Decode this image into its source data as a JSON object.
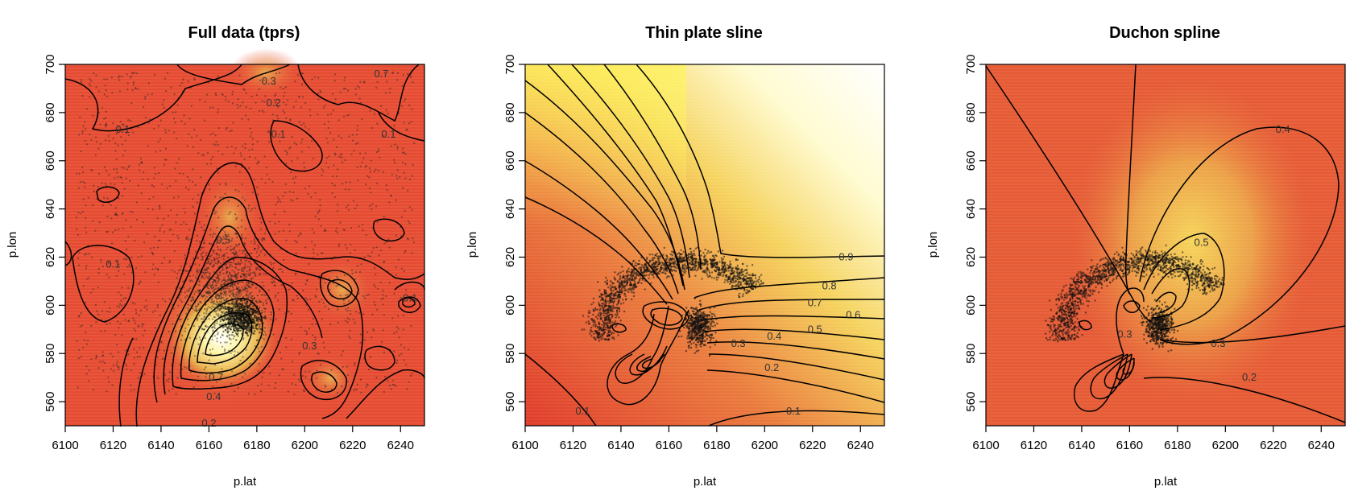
{
  "chart_data": [
    {
      "type": "heatmap",
      "title": "Full data (tprs)",
      "xlabel": "p.lat",
      "ylabel": "p.lon",
      "xlim": [
        6100,
        6250
      ],
      "ylim": [
        550,
        700
      ],
      "xticks": [
        "6100",
        "6120",
        "6140",
        "6160",
        "6180",
        "6200",
        "6220",
        "6240"
      ],
      "yticks": [
        "560",
        "580",
        "600",
        "620",
        "640",
        "660",
        "680",
        "700"
      ],
      "contour_labels": [
        {
          "text": "0.1",
          "x": 6124,
          "y": 673
        },
        {
          "text": "0.2",
          "x": 6187,
          "y": 684
        },
        {
          "text": "0.1",
          "x": 6189,
          "y": 671
        },
        {
          "text": "0.1",
          "x": 6235,
          "y": 671
        },
        {
          "text": "0.1",
          "x": 6120,
          "y": 617
        },
        {
          "text": "0.7",
          "x": 6232,
          "y": 696
        },
        {
          "text": "0.3",
          "x": 6185,
          "y": 693
        },
        {
          "text": "0.5",
          "x": 6166,
          "y": 627
        },
        {
          "text": "0.7",
          "x": 6163,
          "y": 570
        },
        {
          "text": "0.4",
          "x": 6162,
          "y": 562
        },
        {
          "text": "0.2",
          "x": 6160,
          "y": 551
        },
        {
          "text": "0.3",
          "x": 6202,
          "y": 583
        },
        {
          "text": "0.1",
          "x": 6244,
          "y": 603
        }
      ]
    },
    {
      "type": "heatmap",
      "title": "Thin plate sline",
      "xlabel": "p.lat",
      "ylabel": "p.lon",
      "xlim": [
        6100,
        6250
      ],
      "ylim": [
        550,
        700
      ],
      "xticks": [
        "6100",
        "6120",
        "6140",
        "6160",
        "6180",
        "6200",
        "6220",
        "6240"
      ],
      "yticks": [
        "560",
        "580",
        "600",
        "620",
        "640",
        "660",
        "680",
        "700"
      ],
      "contour_labels": [
        {
          "text": "0.9",
          "x": 6234,
          "y": 620
        },
        {
          "text": "0.8",
          "x": 6227,
          "y": 608
        },
        {
          "text": "0.7",
          "x": 6221,
          "y": 601
        },
        {
          "text": "0.6",
          "x": 6237,
          "y": 596
        },
        {
          "text": "0.5",
          "x": 6221,
          "y": 590
        },
        {
          "text": "0.4",
          "x": 6204,
          "y": 587
        },
        {
          "text": "0.3",
          "x": 6189,
          "y": 584
        },
        {
          "text": "0.2",
          "x": 6203,
          "y": 574
        },
        {
          "text": "0.1",
          "x": 6212,
          "y": 556
        },
        {
          "text": "0.1",
          "x": 6124,
          "y": 556
        }
      ]
    },
    {
      "type": "heatmap",
      "title": "Duchon spline",
      "xlabel": "p.lat",
      "ylabel": "p.lon",
      "xlim": [
        6100,
        6250
      ],
      "ylim": [
        550,
        700
      ],
      "xticks": [
        "6100",
        "6120",
        "6140",
        "6160",
        "6180",
        "6200",
        "6220",
        "6240"
      ],
      "yticks": [
        "560",
        "580",
        "600",
        "620",
        "640",
        "660",
        "680",
        "700"
      ],
      "contour_labels": [
        {
          "text": "0.4",
          "x": 6224,
          "y": 673
        },
        {
          "text": "0.5",
          "x": 6190,
          "y": 626
        },
        {
          "text": "0.3",
          "x": 6197,
          "y": 584
        },
        {
          "text": "0.2",
          "x": 6210,
          "y": 570
        },
        {
          "text": "0.3",
          "x": 6158,
          "y": 588
        }
      ]
    }
  ]
}
